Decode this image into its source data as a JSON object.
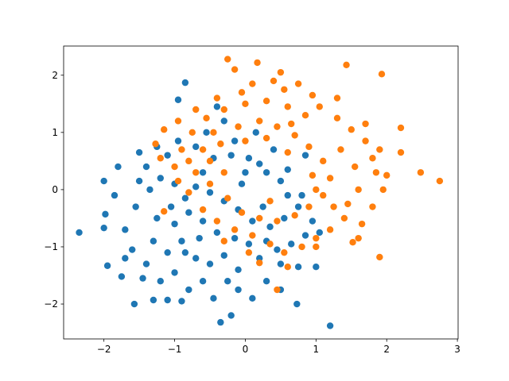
{
  "chart_data": {
    "type": "scatter",
    "xlim": [
      -2.57,
      3.01
    ],
    "ylim": [
      -2.61,
      2.51
    ],
    "xticks": [
      {
        "value": -2,
        "label": "−2"
      },
      {
        "value": -1,
        "label": "−1"
      },
      0,
      1,
      2,
      3
    ],
    "yticks": [
      {
        "value": -2,
        "label": "−2"
      },
      {
        "value": -1,
        "label": "−1"
      },
      0,
      1,
      2
    ],
    "series": [
      {
        "color": "#1f77b4",
        "x": [
          -2.35,
          -2.0,
          -1.98,
          -2.0,
          -1.95,
          -1.75,
          -1.57,
          -1.3,
          -1.1,
          -0.35,
          -0.2,
          0.73,
          1.2,
          0.5,
          1.0,
          -0.85,
          -0.95,
          -1.5,
          -1.8,
          -1.85,
          -1.7,
          -1.6,
          -1.4,
          -1.45,
          -1.2,
          -1.0,
          -0.8,
          -0.6,
          -0.45,
          -0.1,
          0.1,
          0.3,
          -0.7,
          -0.5,
          -0.3,
          -0.1,
          0.2,
          0.5,
          0.75,
          -1.3,
          -1.1,
          -0.9,
          -1.25,
          -1.0,
          -0.8,
          -1.55,
          -1.35,
          -1.2,
          -1.0,
          -0.85,
          -1.4,
          -1.1,
          -1.25,
          -0.95,
          -0.7,
          -0.55,
          -0.4,
          -0.3,
          -0.6,
          -0.45,
          -0.2,
          0.05,
          0.3,
          0.5,
          0.6,
          0.75,
          0.55,
          0.35,
          0.1,
          -0.1,
          -0.3,
          -0.5,
          -0.6,
          -0.4,
          -0.15,
          0.05,
          0.3,
          0.45,
          0.65,
          0.85,
          0.95,
          0.8,
          0.2,
          0.6,
          0.4,
          0.15,
          -0.15,
          -0.65,
          -0.85,
          -1.05,
          -0.7,
          0.0,
          0.85,
          1.05,
          -1.7,
          -1.5,
          -0.25,
          -0.9,
          0.25,
          -0.05
        ],
        "y": [
          -0.75,
          0.15,
          -0.43,
          -0.67,
          -1.33,
          -1.52,
          -2.0,
          -1.93,
          -1.93,
          -2.32,
          -2.2,
          -2.0,
          -2.38,
          -1.75,
          -1.35,
          1.87,
          1.57,
          0.65,
          0.4,
          -0.1,
          -0.7,
          -1.05,
          -1.3,
          -1.55,
          -1.6,
          -1.45,
          -1.75,
          -1.6,
          -1.9,
          -1.75,
          -1.9,
          -1.6,
          -1.2,
          -1.3,
          -1.15,
          -1.4,
          -1.2,
          -1.3,
          -1.35,
          -0.9,
          -1.1,
          -0.9,
          -0.5,
          -0.6,
          -0.4,
          -0.3,
          0.0,
          0.2,
          0.1,
          -0.15,
          0.4,
          0.6,
          0.75,
          0.85,
          0.75,
          1.0,
          1.45,
          1.2,
          0.3,
          0.55,
          0.6,
          0.55,
          0.3,
          0.15,
          -0.1,
          -0.3,
          -0.5,
          -0.65,
          -0.55,
          -0.35,
          -0.2,
          -0.05,
          -0.55,
          -0.75,
          -0.85,
          -0.95,
          -0.9,
          -1.05,
          -0.95,
          -0.8,
          -0.55,
          -0.1,
          0.45,
          0.35,
          0.7,
          1.0,
          0.85,
          -0.85,
          -1.1,
          -0.3,
          0.05,
          0.3,
          0.6,
          -0.75,
          -1.2,
          0.15,
          -1.6,
          -1.95,
          -0.3,
          0.1
        ]
      },
      {
        "color": "#ff7f0e",
        "x": [
          -0.25,
          0.17,
          1.43,
          1.93,
          0.5,
          2.75,
          2.48,
          2.2,
          2.2,
          1.9,
          0.45,
          1.52,
          -1.15,
          -1.27,
          0.2,
          -0.15,
          0.4,
          0.55,
          0.1,
          -0.4,
          -0.7,
          -0.95,
          -1.15,
          -1.2,
          -1.0,
          -0.9,
          -0.75,
          -0.55,
          -0.3,
          0.0,
          0.3,
          0.6,
          0.85,
          1.05,
          1.3,
          1.5,
          1.7,
          1.9,
          1.85,
          1.95,
          1.8,
          1.65,
          1.4,
          1.2,
          1.0,
          0.8,
          0.55,
          0.35,
          0.1,
          -0.15,
          -0.4,
          -0.6,
          -0.8,
          -0.95,
          -0.7,
          -0.5,
          -0.35,
          -0.1,
          0.2,
          0.45,
          0.7,
          0.9,
          1.1,
          1.2,
          1.0,
          0.9,
          0.7,
          0.45,
          0.2,
          -0.05,
          -0.25,
          -0.5,
          -0.6,
          -0.45,
          0.0,
          0.3,
          0.6,
          1.35,
          1.55,
          1.6,
          1.45,
          1.7,
          1.8,
          1.3,
          0.95,
          0.75,
          1.25,
          1.1,
          0.95,
          0.05,
          -0.3,
          0.6,
          1.0,
          -0.8,
          -0.3,
          0.65,
          1.6,
          2.0,
          -0.05,
          0.35
        ],
        "y": [
          2.28,
          2.22,
          2.18,
          2.02,
          2.05,
          0.15,
          0.3,
          1.08,
          0.65,
          -1.18,
          -1.75,
          -0.92,
          -0.38,
          0.8,
          -1.28,
          2.1,
          1.9,
          1.75,
          1.85,
          1.6,
          1.4,
          1.2,
          1.05,
          0.55,
          0.4,
          0.7,
          1.0,
          1.25,
          1.4,
          1.5,
          1.55,
          1.45,
          1.3,
          1.45,
          1.25,
          1.05,
          0.85,
          0.7,
          0.3,
          0.0,
          -0.3,
          -0.6,
          -0.5,
          -0.7,
          -0.85,
          -1.0,
          -1.1,
          -0.95,
          -0.8,
          -0.7,
          -0.55,
          -0.35,
          -0.05,
          0.15,
          0.3,
          0.5,
          0.8,
          1.1,
          1.2,
          1.1,
          0.95,
          0.75,
          0.5,
          0.2,
          0.0,
          -0.3,
          -0.45,
          -0.55,
          -0.5,
          -0.4,
          -0.15,
          0.1,
          0.7,
          1.0,
          0.85,
          0.9,
          0.65,
          0.7,
          0.4,
          0.0,
          -0.25,
          1.15,
          0.55,
          1.6,
          1.65,
          1.85,
          -0.3,
          -0.1,
          0.25,
          -1.1,
          -0.9,
          -1.35,
          -1.0,
          0.5,
          0.3,
          1.15,
          -0.85,
          0.25,
          1.7,
          -0.2
        ]
      }
    ]
  }
}
